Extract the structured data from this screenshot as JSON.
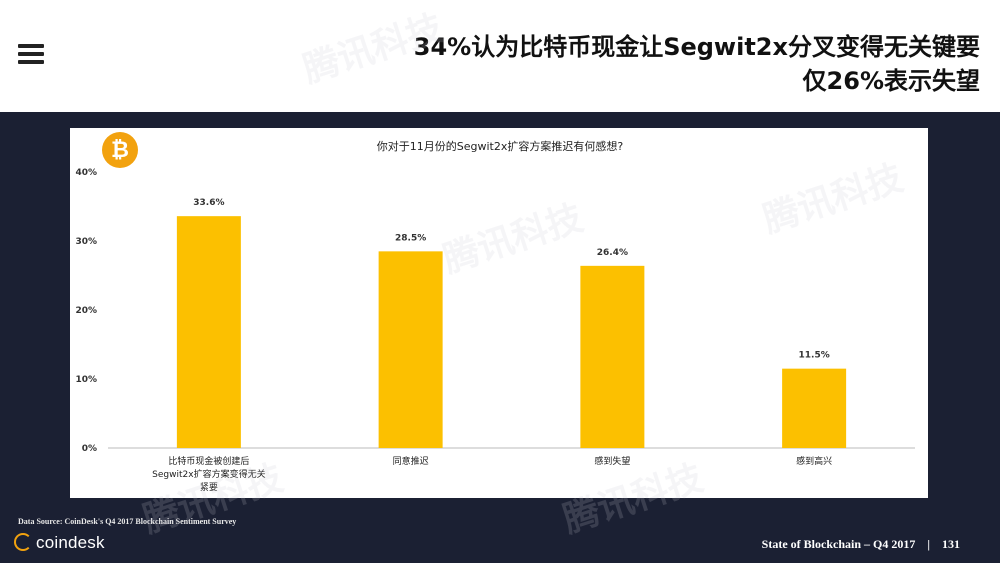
{
  "headline": {
    "line1": "34%认为比特币现金让Segwit2x分叉变得无关键要",
    "line2": "仅26%表示失望"
  },
  "footer": {
    "source": "Data Source: CoinDesk's Q4 2017 Blockchain Sentiment Survey",
    "brand": "coindesk",
    "report": "State of Blockchain – Q4 2017",
    "separator": "|",
    "page": "131"
  },
  "watermark_text": "腾讯科技",
  "colors": {
    "bar": "#fcc000",
    "background": "#1b2033",
    "accent": "#f2a20f"
  },
  "icons": {
    "logo": "bitcoin-icon",
    "menu": "hamburger-menu-icon"
  },
  "chart_data": {
    "type": "bar",
    "title": "你对于11月份的Segwit2x扩容方案推迟有何感想?",
    "categories": [
      [
        "比特币现金被创建后",
        "Segwit2x扩容方案变得无关",
        "紧要"
      ],
      [
        "同意推迟"
      ],
      [
        "感到失望"
      ],
      [
        "感到高兴"
      ]
    ],
    "values": [
      33.6,
      28.5,
      26.4,
      11.5
    ],
    "data_labels": [
      "33.6%",
      "28.5%",
      "26.4%",
      "11.5%"
    ],
    "y_ticks": [
      "0%",
      "10%",
      "20%",
      "30%",
      "40%"
    ],
    "ylim": [
      0,
      40
    ],
    "grid": false,
    "legend": "none"
  }
}
